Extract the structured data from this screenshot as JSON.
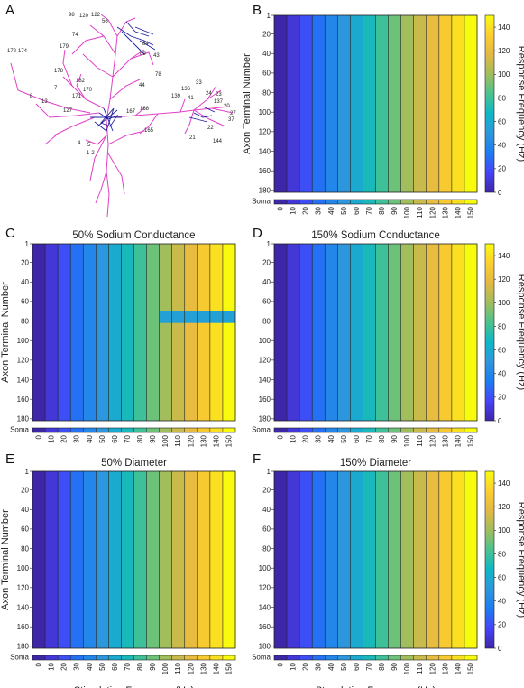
{
  "panel_labels": [
    "A",
    "B",
    "C",
    "D",
    "E",
    "F"
  ],
  "neuron": {
    "terminal_labels": [
      "172-174",
      "98",
      "120",
      "122",
      "56",
      "74",
      "179",
      "84",
      "89",
      "43",
      "78",
      "178",
      "182",
      "7",
      "170",
      "44",
      "8",
      "171",
      "13",
      "127",
      "167",
      "168",
      "33",
      "139",
      "136",
      "41",
      "24",
      "23",
      "137",
      "20",
      "27",
      "37",
      "165",
      "22",
      "21",
      "144",
      "4",
      "5",
      "1-2"
    ],
    "colors": {
      "dendrite": "#e040c8",
      "axon": "#1f1f9e"
    }
  },
  "chart_data": [
    {
      "panel": "B",
      "type": "heatmap",
      "title": "",
      "xlabel": "",
      "ylabel": "Axon Terminal Number",
      "x": [
        0,
        10,
        20,
        30,
        40,
        50,
        60,
        70,
        80,
        90,
        100,
        110,
        120,
        130,
        140,
        150
      ],
      "y_ticks": [
        1,
        20,
        40,
        60,
        80,
        100,
        120,
        140,
        160,
        180
      ],
      "row_label": "Soma",
      "soma_values": [
        0,
        10,
        20,
        30,
        40,
        50,
        60,
        70,
        80,
        90,
        100,
        110,
        120,
        130,
        140,
        150
      ],
      "values_by_column": [
        0,
        10,
        20,
        30,
        40,
        50,
        60,
        70,
        80,
        90,
        100,
        110,
        120,
        130,
        140,
        150
      ],
      "colorbar": {
        "label": "Response Frequency (Hz)",
        "ticks": [
          0,
          20,
          40,
          60,
          80,
          100,
          120,
          140
        ],
        "min": 0,
        "max": 150
      }
    },
    {
      "panel": "C",
      "type": "heatmap",
      "title": "50% Sodium Conductance",
      "xlabel": "",
      "ylabel": "Axon Terminal Number",
      "x": [
        0,
        10,
        20,
        30,
        40,
        50,
        60,
        70,
        80,
        90,
        100,
        110,
        120,
        130,
        140,
        150
      ],
      "y_ticks": [
        1,
        20,
        40,
        60,
        80,
        100,
        120,
        140,
        160,
        180
      ],
      "row_label": "Soma",
      "soma_values": [
        0,
        10,
        20,
        30,
        40,
        50,
        60,
        70,
        80,
        90,
        100,
        110,
        120,
        130,
        140,
        150
      ],
      "values_by_column": [
        0,
        10,
        20,
        30,
        40,
        50,
        60,
        70,
        80,
        90,
        100,
        110,
        120,
        130,
        140,
        150
      ],
      "anomalies": [
        {
          "terminals": [
            70,
            82
          ],
          "stim_from": 100,
          "stim_to": 150,
          "response": 55
        }
      ]
    },
    {
      "panel": "D",
      "type": "heatmap",
      "title": "150% Sodium Conductance",
      "xlabel": "",
      "ylabel": "",
      "x": [
        0,
        10,
        20,
        30,
        40,
        50,
        60,
        70,
        80,
        90,
        100,
        110,
        120,
        130,
        140,
        150
      ],
      "y_ticks": [
        1,
        20,
        40,
        60,
        80,
        100,
        120,
        140,
        160,
        180
      ],
      "row_label": "Soma",
      "soma_values": [
        0,
        10,
        20,
        30,
        40,
        50,
        60,
        70,
        80,
        90,
        100,
        110,
        120,
        130,
        140,
        150
      ],
      "values_by_column": [
        0,
        10,
        20,
        30,
        40,
        50,
        60,
        70,
        80,
        90,
        100,
        110,
        120,
        130,
        140,
        150
      ],
      "colorbar": {
        "label": "Response Frequency (Hz)",
        "ticks": [
          0,
          20,
          40,
          60,
          80,
          100,
          120,
          140
        ],
        "min": 0,
        "max": 150
      }
    },
    {
      "panel": "E",
      "type": "heatmap",
      "title": "50% Diameter",
      "xlabel": "Stimulation Frequency (Hz)",
      "ylabel": "Axon Terminal Number",
      "x": [
        0,
        10,
        20,
        30,
        40,
        50,
        60,
        70,
        80,
        90,
        100,
        110,
        120,
        130,
        140,
        150
      ],
      "y_ticks": [
        1,
        20,
        40,
        60,
        80,
        100,
        120,
        140,
        160,
        180
      ],
      "row_label": "Soma",
      "soma_values": [
        0,
        10,
        20,
        30,
        40,
        50,
        60,
        70,
        80,
        90,
        100,
        110,
        120,
        130,
        140,
        150
      ],
      "values_by_column": [
        0,
        10,
        20,
        30,
        40,
        50,
        60,
        70,
        80,
        90,
        100,
        110,
        120,
        130,
        140,
        150
      ]
    },
    {
      "panel": "F",
      "type": "heatmap",
      "title": "150% Diameter",
      "xlabel": "Stimulation Frequency (Hz)",
      "ylabel": "",
      "x": [
        0,
        10,
        20,
        30,
        40,
        50,
        60,
        70,
        80,
        90,
        100,
        110,
        120,
        130,
        140,
        150
      ],
      "y_ticks": [
        1,
        20,
        40,
        60,
        80,
        100,
        120,
        140,
        160,
        180
      ],
      "row_label": "Soma",
      "soma_values": [
        0,
        10,
        20,
        30,
        40,
        50,
        60,
        70,
        80,
        90,
        100,
        110,
        120,
        130,
        140,
        150
      ],
      "values_by_column": [
        0,
        10,
        20,
        30,
        40,
        50,
        60,
        70,
        80,
        90,
        100,
        110,
        120,
        130,
        140,
        150
      ],
      "colorbar": {
        "label": "Response Frequency (Hz)",
        "ticks": [
          0,
          20,
          40,
          60,
          80,
          100,
          120,
          140
        ],
        "min": 0,
        "max": 150
      }
    }
  ],
  "colormap": [
    "#3e26a8",
    "#4743f8",
    "#1c7cf2",
    "#2d97de",
    "#0db7c7",
    "#4ac38d",
    "#a1bd5c",
    "#e3b842",
    "#fcce2e",
    "#f9fb0e"
  ]
}
